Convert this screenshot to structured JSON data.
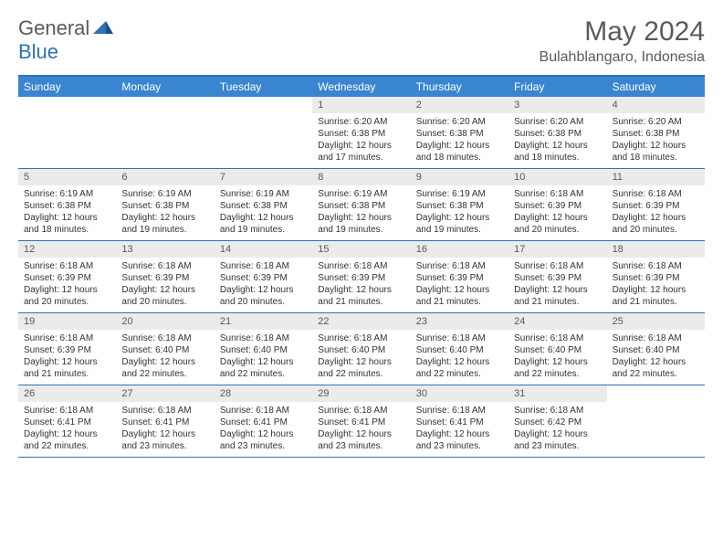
{
  "brand": {
    "part1": "General",
    "part2": "Blue"
  },
  "title": "May 2024",
  "location": "Bulahblangaro, Indonesia",
  "colors": {
    "brand_blue": "#2d72b8",
    "header_bg": "#3a85d0",
    "daynum_bg": "#ebebeb",
    "text_gray": "#5a5a5a"
  },
  "dayNames": [
    "Sunday",
    "Monday",
    "Tuesday",
    "Wednesday",
    "Thursday",
    "Friday",
    "Saturday"
  ],
  "weeks": [
    [
      {
        "n": "",
        "empty": true
      },
      {
        "n": "",
        "empty": true
      },
      {
        "n": "",
        "empty": true
      },
      {
        "n": "1",
        "sr": "Sunrise: 6:20 AM",
        "ss": "Sunset: 6:38 PM",
        "dl1": "Daylight: 12 hours",
        "dl2": "and 17 minutes."
      },
      {
        "n": "2",
        "sr": "Sunrise: 6:20 AM",
        "ss": "Sunset: 6:38 PM",
        "dl1": "Daylight: 12 hours",
        "dl2": "and 18 minutes."
      },
      {
        "n": "3",
        "sr": "Sunrise: 6:20 AM",
        "ss": "Sunset: 6:38 PM",
        "dl1": "Daylight: 12 hours",
        "dl2": "and 18 minutes."
      },
      {
        "n": "4",
        "sr": "Sunrise: 6:20 AM",
        "ss": "Sunset: 6:38 PM",
        "dl1": "Daylight: 12 hours",
        "dl2": "and 18 minutes."
      }
    ],
    [
      {
        "n": "5",
        "sr": "Sunrise: 6:19 AM",
        "ss": "Sunset: 6:38 PM",
        "dl1": "Daylight: 12 hours",
        "dl2": "and 18 minutes."
      },
      {
        "n": "6",
        "sr": "Sunrise: 6:19 AM",
        "ss": "Sunset: 6:38 PM",
        "dl1": "Daylight: 12 hours",
        "dl2": "and 19 minutes."
      },
      {
        "n": "7",
        "sr": "Sunrise: 6:19 AM",
        "ss": "Sunset: 6:38 PM",
        "dl1": "Daylight: 12 hours",
        "dl2": "and 19 minutes."
      },
      {
        "n": "8",
        "sr": "Sunrise: 6:19 AM",
        "ss": "Sunset: 6:38 PM",
        "dl1": "Daylight: 12 hours",
        "dl2": "and 19 minutes."
      },
      {
        "n": "9",
        "sr": "Sunrise: 6:19 AM",
        "ss": "Sunset: 6:38 PM",
        "dl1": "Daylight: 12 hours",
        "dl2": "and 19 minutes."
      },
      {
        "n": "10",
        "sr": "Sunrise: 6:18 AM",
        "ss": "Sunset: 6:39 PM",
        "dl1": "Daylight: 12 hours",
        "dl2": "and 20 minutes."
      },
      {
        "n": "11",
        "sr": "Sunrise: 6:18 AM",
        "ss": "Sunset: 6:39 PM",
        "dl1": "Daylight: 12 hours",
        "dl2": "and 20 minutes."
      }
    ],
    [
      {
        "n": "12",
        "sr": "Sunrise: 6:18 AM",
        "ss": "Sunset: 6:39 PM",
        "dl1": "Daylight: 12 hours",
        "dl2": "and 20 minutes."
      },
      {
        "n": "13",
        "sr": "Sunrise: 6:18 AM",
        "ss": "Sunset: 6:39 PM",
        "dl1": "Daylight: 12 hours",
        "dl2": "and 20 minutes."
      },
      {
        "n": "14",
        "sr": "Sunrise: 6:18 AM",
        "ss": "Sunset: 6:39 PM",
        "dl1": "Daylight: 12 hours",
        "dl2": "and 20 minutes."
      },
      {
        "n": "15",
        "sr": "Sunrise: 6:18 AM",
        "ss": "Sunset: 6:39 PM",
        "dl1": "Daylight: 12 hours",
        "dl2": "and 21 minutes."
      },
      {
        "n": "16",
        "sr": "Sunrise: 6:18 AM",
        "ss": "Sunset: 6:39 PM",
        "dl1": "Daylight: 12 hours",
        "dl2": "and 21 minutes."
      },
      {
        "n": "17",
        "sr": "Sunrise: 6:18 AM",
        "ss": "Sunset: 6:39 PM",
        "dl1": "Daylight: 12 hours",
        "dl2": "and 21 minutes."
      },
      {
        "n": "18",
        "sr": "Sunrise: 6:18 AM",
        "ss": "Sunset: 6:39 PM",
        "dl1": "Daylight: 12 hours",
        "dl2": "and 21 minutes."
      }
    ],
    [
      {
        "n": "19",
        "sr": "Sunrise: 6:18 AM",
        "ss": "Sunset: 6:39 PM",
        "dl1": "Daylight: 12 hours",
        "dl2": "and 21 minutes."
      },
      {
        "n": "20",
        "sr": "Sunrise: 6:18 AM",
        "ss": "Sunset: 6:40 PM",
        "dl1": "Daylight: 12 hours",
        "dl2": "and 22 minutes."
      },
      {
        "n": "21",
        "sr": "Sunrise: 6:18 AM",
        "ss": "Sunset: 6:40 PM",
        "dl1": "Daylight: 12 hours",
        "dl2": "and 22 minutes."
      },
      {
        "n": "22",
        "sr": "Sunrise: 6:18 AM",
        "ss": "Sunset: 6:40 PM",
        "dl1": "Daylight: 12 hours",
        "dl2": "and 22 minutes."
      },
      {
        "n": "23",
        "sr": "Sunrise: 6:18 AM",
        "ss": "Sunset: 6:40 PM",
        "dl1": "Daylight: 12 hours",
        "dl2": "and 22 minutes."
      },
      {
        "n": "24",
        "sr": "Sunrise: 6:18 AM",
        "ss": "Sunset: 6:40 PM",
        "dl1": "Daylight: 12 hours",
        "dl2": "and 22 minutes."
      },
      {
        "n": "25",
        "sr": "Sunrise: 6:18 AM",
        "ss": "Sunset: 6:40 PM",
        "dl1": "Daylight: 12 hours",
        "dl2": "and 22 minutes."
      }
    ],
    [
      {
        "n": "26",
        "sr": "Sunrise: 6:18 AM",
        "ss": "Sunset: 6:41 PM",
        "dl1": "Daylight: 12 hours",
        "dl2": "and 22 minutes."
      },
      {
        "n": "27",
        "sr": "Sunrise: 6:18 AM",
        "ss": "Sunset: 6:41 PM",
        "dl1": "Daylight: 12 hours",
        "dl2": "and 23 minutes."
      },
      {
        "n": "28",
        "sr": "Sunrise: 6:18 AM",
        "ss": "Sunset: 6:41 PM",
        "dl1": "Daylight: 12 hours",
        "dl2": "and 23 minutes."
      },
      {
        "n": "29",
        "sr": "Sunrise: 6:18 AM",
        "ss": "Sunset: 6:41 PM",
        "dl1": "Daylight: 12 hours",
        "dl2": "and 23 minutes."
      },
      {
        "n": "30",
        "sr": "Sunrise: 6:18 AM",
        "ss": "Sunset: 6:41 PM",
        "dl1": "Daylight: 12 hours",
        "dl2": "and 23 minutes."
      },
      {
        "n": "31",
        "sr": "Sunrise: 6:18 AM",
        "ss": "Sunset: 6:42 PM",
        "dl1": "Daylight: 12 hours",
        "dl2": "and 23 minutes."
      },
      {
        "n": "",
        "empty": true
      }
    ]
  ]
}
